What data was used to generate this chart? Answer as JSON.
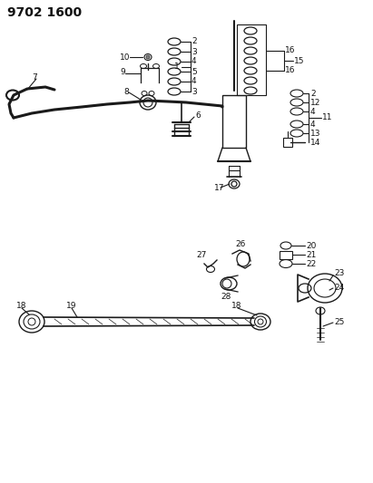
{
  "title": "9702 1600",
  "bg_color": "#ffffff",
  "line_color": "#1a1a1a",
  "text_color": "#111111",
  "title_fontsize": 10,
  "label_fontsize": 6.5,
  "figsize": [
    4.11,
    5.33
  ],
  "dpi": 100
}
